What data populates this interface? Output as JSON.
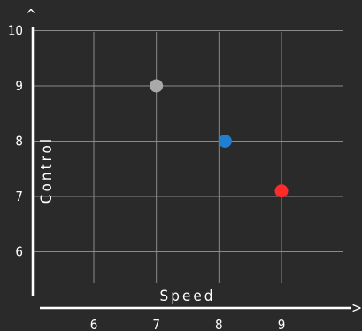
{
  "chart_data": {
    "type": "scatter",
    "title": "",
    "xlabel": "Speed",
    "ylabel": "Control",
    "xlim": [
      5,
      10
    ],
    "ylim": [
      5.2,
      10.2
    ],
    "x_ticks": [
      "6",
      "7",
      "8",
      "9"
    ],
    "y_ticks": [
      "6",
      "7",
      "8",
      "9",
      "10"
    ],
    "grid": true,
    "points": [
      {
        "x": 7.0,
        "y": 9.0,
        "color": "#a9a9a9"
      },
      {
        "x": 8.1,
        "y": 8.0,
        "color": "#1f7fd0"
      },
      {
        "x": 9.0,
        "y": 7.1,
        "color": "#ff2a2a"
      }
    ]
  },
  "axes": {
    "x_arrow": ">",
    "y_arrow": "^"
  },
  "colors": {
    "background": "#2a2a2a",
    "grid": "#8a8a8a",
    "axis": "#ffffff"
  }
}
